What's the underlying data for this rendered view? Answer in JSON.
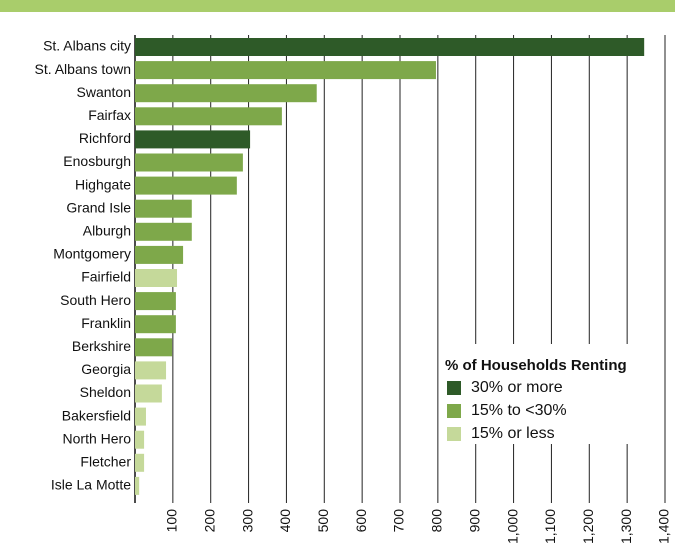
{
  "chart_data": {
    "type": "barh",
    "categories": [
      "St. Albans city",
      "St. Albans town",
      "Swanton",
      "Fairfax",
      "Richford",
      "Enosburgh",
      "Highgate",
      "Grand Isle",
      "Alburgh",
      "Montgomery",
      "Fairfield",
      "South Hero",
      "Franklin",
      "Berkshire",
      "Georgia",
      "Sheldon",
      "Bakersfield",
      "North Hero",
      "Fletcher",
      "Isle La Motte"
    ],
    "values": [
      1345,
      795,
      480,
      388,
      304,
      285,
      269,
      150,
      150,
      127,
      111,
      108,
      108,
      98,
      82,
      71,
      29,
      24,
      24,
      11
    ],
    "colors": [
      "#2e5a28",
      "#7ea84a",
      "#7ea84a",
      "#7ea84a",
      "#2e5a28",
      "#7ea84a",
      "#7ea84a",
      "#7ea84a",
      "#7ea84a",
      "#7ea84a",
      "#c5d99a",
      "#7ea84a",
      "#7ea84a",
      "#7ea84a",
      "#c5d99a",
      "#c5d99a",
      "#c5d99a",
      "#c5d99a",
      "#c5d99a",
      "#c5d99a"
    ],
    "xlim": [
      0,
      1400
    ],
    "xticks": [
      100,
      200,
      300,
      400,
      500,
      600,
      700,
      800,
      900,
      {
        "value": 1000,
        "label": "1,000"
      },
      {
        "value": 1100,
        "label": "1,100"
      },
      {
        "value": 1200,
        "label": "1,200"
      },
      {
        "value": 1300,
        "label": "1,300"
      },
      {
        "value": 1400,
        "label": "1,400"
      }
    ],
    "grid": true,
    "legend": {
      "title": "% of Households Renting",
      "position": "lower right",
      "items": [
        {
          "label": "30% or more",
          "color": "#2e5a28"
        },
        {
          "label": "15% to <30%",
          "color": "#7ea84a"
        },
        {
          "label": "15% or less",
          "color": "#c5d99a"
        }
      ]
    }
  }
}
